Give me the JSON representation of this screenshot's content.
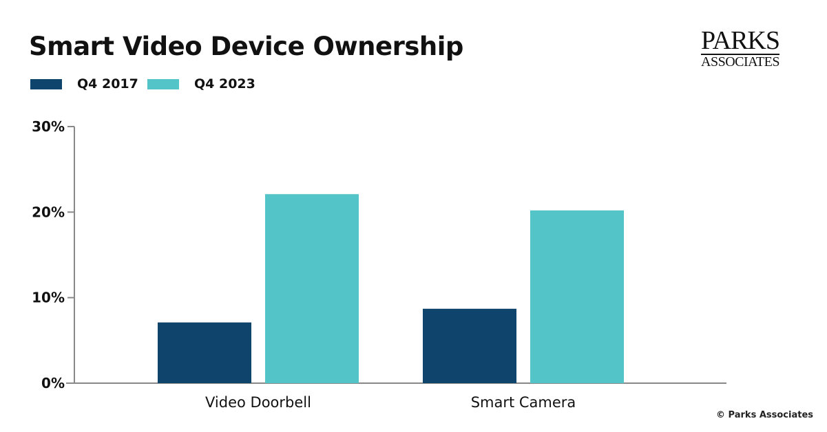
{
  "chart_data": {
    "type": "bar",
    "title": "Smart Video Device Ownership",
    "categories": [
      "Video Doorbell",
      "Smart Camera"
    ],
    "series": [
      {
        "name": "Q4 2017",
        "values": [
          7.1,
          8.7
        ],
        "color": "#0f446c"
      },
      {
        "name": "Q4 2023",
        "values": [
          22.1,
          20.2
        ],
        "color": "#53c4c8"
      }
    ],
    "ylim": [
      0,
      30
    ],
    "yticks": [
      0,
      10,
      20,
      30
    ],
    "ytick_labels": [
      "0%",
      "10%",
      "20%",
      "30%"
    ],
    "xlabel": "",
    "ylabel": "",
    "grid": false,
    "legend_position": "top-left"
  },
  "logo": {
    "line1": "PARKS",
    "line2": "ASSOCIATES"
  },
  "credit": "© Parks Associates"
}
